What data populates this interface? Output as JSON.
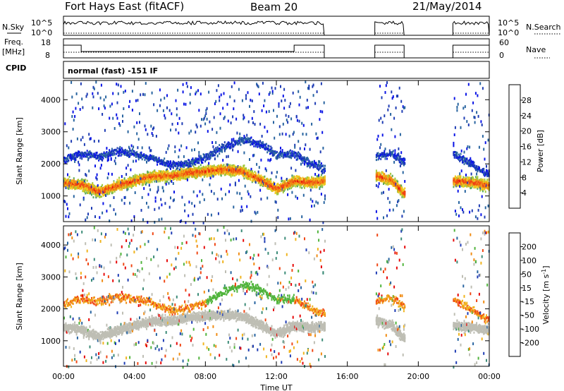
{
  "header": {
    "title": "Fort Hays East (fitACF)",
    "beam": "Beam 20",
    "date": "21/May/2014"
  },
  "strips": {
    "nsky_label": "N.Sky",
    "nsky_tick_top": "10^5",
    "nsky_tick_bottom": "10^0",
    "nsearch_label": "N.Search",
    "freq_label": "Freq.",
    "freq_unit": "[MHz]",
    "freq_tick_top": "18",
    "freq_tick_bottom": "8",
    "nave_label": "Nave",
    "nave_tick_top": "60",
    "nave_tick_bottom": "0",
    "cpid_label": "CPID",
    "cpid_value": "normal (fast) -151 IF"
  },
  "colors": {
    "power": [
      "#0a14e6",
      "#1e3cb4",
      "#2864a0",
      "#3c8c78",
      "#5aaa5a",
      "#a0c83c",
      "#f0c81e",
      "#f08c14",
      "#f04614",
      "#e60a0a"
    ],
    "velocity": [
      "#e60a0a",
      "#f04614",
      "#f08c14",
      "#f0b41e",
      "#bebeb4",
      "#bebeb4",
      "#50b43c",
      "#3c8c78",
      "#2864a0",
      "#1e3cb4"
    ],
    "ground_scatter": "#bebeb4"
  },
  "chart_data": [
    {
      "type": "heatmap",
      "panel": "power",
      "ylabel": "Slant Range [km]",
      "xlabel": "",
      "xlim": [
        "00:00",
        "24:00"
      ],
      "ylim": [
        200,
        4600
      ],
      "yticks": [
        "1000",
        "2000",
        "3000",
        "4000"
      ],
      "data_gaps_ut": [
        [
          "14:45",
          "17:35"
        ],
        [
          "19:15",
          "21:55"
        ]
      ],
      "colorbar": {
        "label": "Power [dB]",
        "range": [
          0,
          30
        ],
        "ticks": [
          "4",
          "8",
          "12",
          "16",
          "20",
          "24",
          "28"
        ]
      },
      "series": [
        {
          "name": "",
          "x": [
            "00:00",
            "01:00",
            "02:00",
            "03:00",
            "04:00",
            "05:00",
            "06:00",
            "07:00",
            "08:00",
            "09:00",
            "10:00",
            "11:00",
            "12:00",
            "13:00",
            "14:00",
            "17:40",
            "18:30",
            "19:10",
            "22:00",
            "23:00",
            "24:00"
          ],
          "y": [
            1450,
            1380,
            1150,
            1350,
            1500,
            1650,
            1650,
            1750,
            1800,
            1850,
            1800,
            1550,
            1250,
            1500,
            1450,
            1650,
            1500,
            1100,
            1500,
            1450,
            1350
          ]
        }
      ]
    },
    {
      "type": "heatmap",
      "panel": "velocity",
      "ylabel": "Slant Range [km]",
      "xlabel": "Time UT",
      "xlim": [
        "00:00",
        "24:00"
      ],
      "ylim": [
        200,
        4600
      ],
      "yticks": [
        "1000",
        "2000",
        "3000",
        "4000"
      ],
      "xticks": [
        "00:00",
        "04:00",
        "08:00",
        "12:00",
        "16:00",
        "20:00",
        "00:00"
      ],
      "colorbar": {
        "label": "Velocity [m s",
        "label_sup": "-1",
        "label_end": "]",
        "range": [
          -250,
          250
        ],
        "ticks": [
          "-200",
          "-100",
          "-50",
          "-15",
          "15",
          "50",
          "100",
          "200"
        ]
      }
    }
  ]
}
